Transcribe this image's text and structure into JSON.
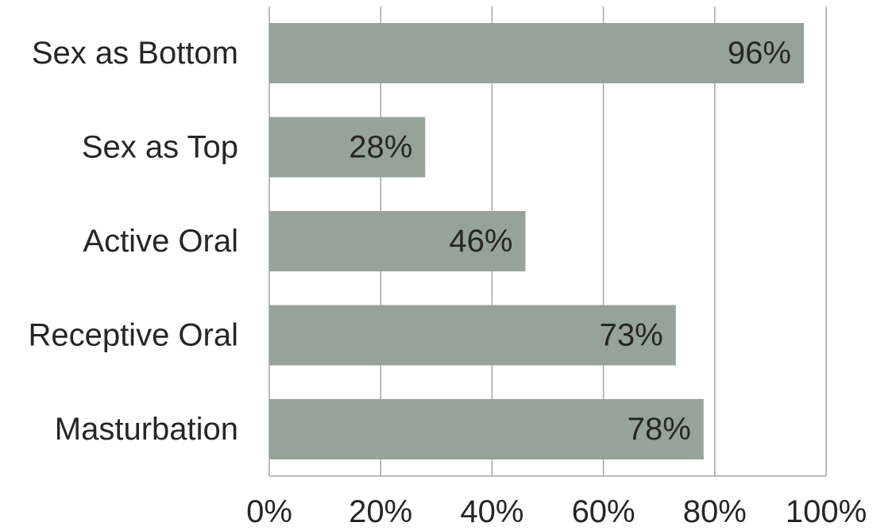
{
  "chart_data": {
    "type": "bar",
    "orientation": "horizontal",
    "title": "",
    "xlabel": "",
    "ylabel": "",
    "categories": [
      "Sex as Bottom",
      "Sex as Top",
      "Active Oral",
      "Receptive Oral",
      "Masturbation"
    ],
    "values": [
      96,
      28,
      46,
      73,
      78
    ],
    "value_labels": [
      "96%",
      "28%",
      "46%",
      "73%",
      "78%"
    ],
    "xlim": [
      0,
      100
    ],
    "x_ticks": [
      0,
      20,
      40,
      60,
      80,
      100
    ],
    "x_tick_labels": [
      "0%",
      "20%",
      "40%",
      "60%",
      "80%",
      "100%"
    ],
    "grid": "vertical",
    "legend": "none",
    "bar_color": "#95a39a",
    "grid_color": "#a6a6a6",
    "text_color": "#262626"
  }
}
